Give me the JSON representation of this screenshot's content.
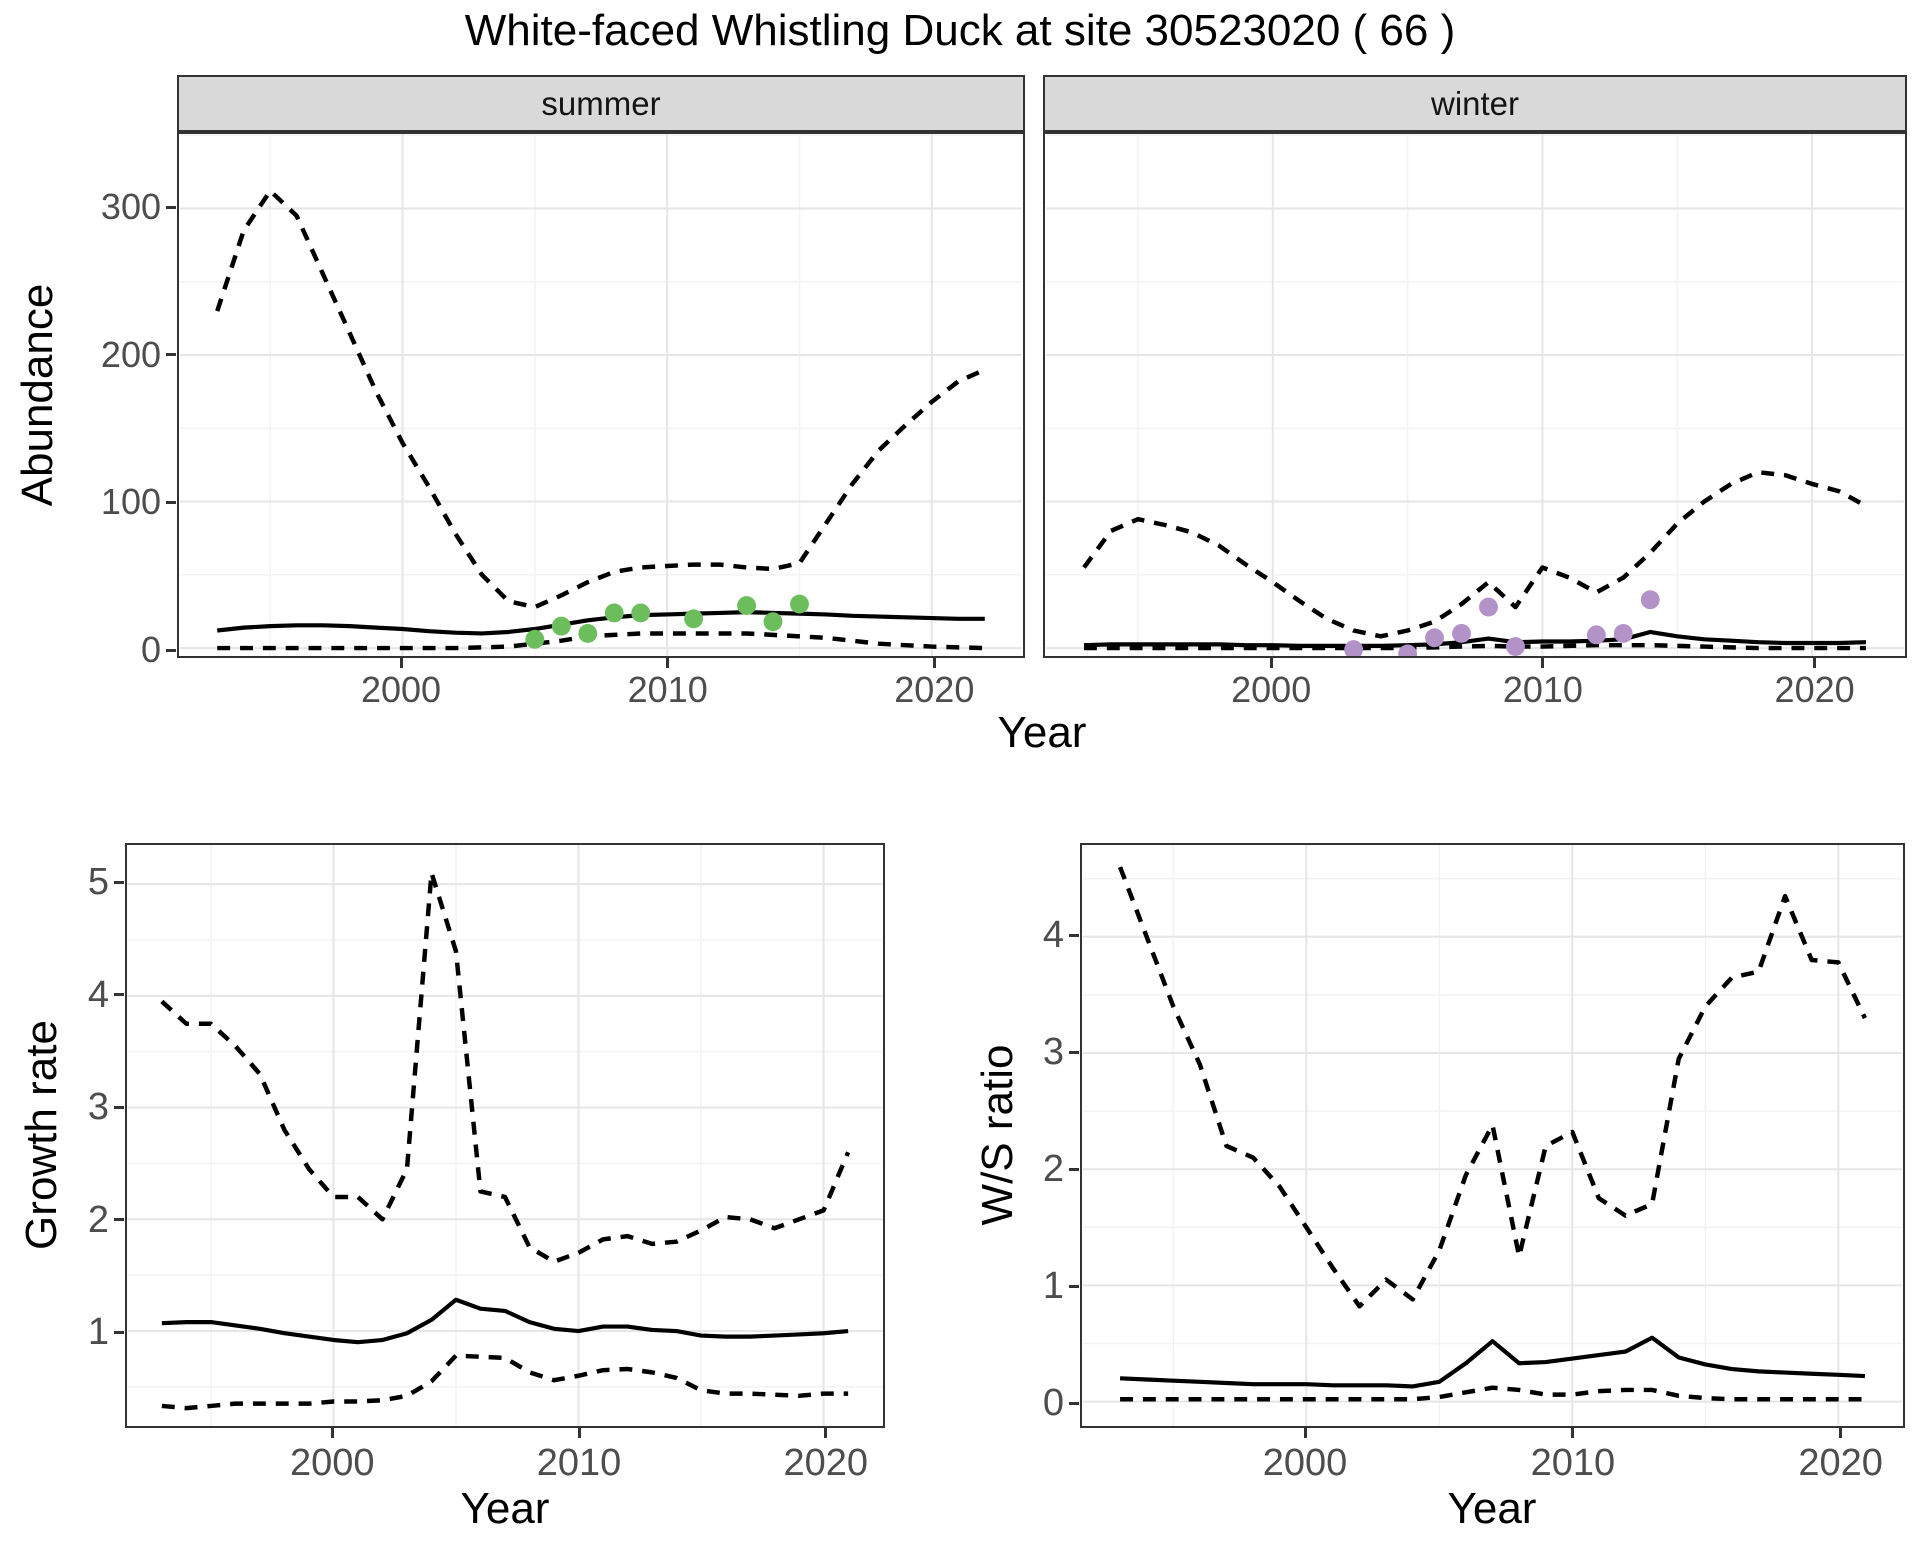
{
  "title": "White-faced Whistling Duck at site 30523020 ( 66 )",
  "colors": {
    "summer_point": "#6BBE5B",
    "winter_point": "#B392C7",
    "line": "#000000",
    "strip_bg": "#D9D9D9",
    "panel_border": "#333333",
    "grid_major": "#E6E6E6",
    "grid_minor": "#F3F3F3",
    "tick_label": "#4D4D4D"
  },
  "chart_data": [
    {
      "id": "abundance-summer",
      "type": "line",
      "facet_label": "summer",
      "xlabel": "Year",
      "ylabel": "Abundance",
      "xlim": [
        1991.6,
        2023.4
      ],
      "ylim": [
        -5.4,
        350.8
      ],
      "x_ticks": [
        2000,
        2010,
        2020
      ],
      "x_minor": [
        1995,
        2005,
        2015
      ],
      "y_ticks": [
        0,
        100,
        200,
        300
      ],
      "y_minor": [
        50,
        150,
        250,
        350
      ],
      "x": [
        1993,
        1994,
        1995,
        1996,
        1997,
        1998,
        1999,
        2000,
        2001,
        2002,
        2003,
        2004,
        2005,
        2006,
        2007,
        2008,
        2009,
        2010,
        2011,
        2012,
        2013,
        2014,
        2015,
        2016,
        2017,
        2018,
        2019,
        2020,
        2021,
        2022
      ],
      "series": [
        {
          "name": "upper-ci",
          "style": "dashed",
          "values": [
            230,
            285,
            312,
            295,
            255,
            215,
            175,
            140,
            110,
            78,
            50,
            32,
            28,
            36,
            45,
            52,
            55,
            56,
            57,
            57,
            55,
            54,
            58,
            85,
            112,
            135,
            152,
            168,
            182,
            190
          ]
        },
        {
          "name": "mean",
          "style": "solid",
          "values": [
            12,
            14,
            15,
            15.5,
            15.5,
            15,
            14,
            13,
            11.5,
            10.5,
            10,
            11,
            13,
            16,
            19,
            21,
            22.5,
            23,
            23.5,
            24,
            24.5,
            24,
            23.5,
            23,
            22,
            21.5,
            21,
            20.5,
            20,
            20
          ]
        },
        {
          "name": "lower-ci",
          "style": "dashed",
          "values": [
            0,
            0,
            0,
            0,
            0,
            0,
            0,
            0,
            0,
            0,
            0.5,
            1,
            3,
            5,
            8,
            9,
            10,
            10,
            10,
            10,
            10,
            9,
            8,
            7,
            5,
            3,
            2,
            1,
            0.5,
            0
          ]
        }
      ],
      "points": {
        "name": "observed-summer",
        "color": "#6BBE5B",
        "years": [
          2005,
          2006,
          2007,
          2008,
          2009,
          2011,
          2013,
          2014,
          2015
        ],
        "values": [
          6,
          15,
          10,
          24,
          24,
          20,
          29,
          18,
          30
        ]
      }
    },
    {
      "id": "abundance-winter",
      "type": "line",
      "facet_label": "winter",
      "xlabel": "Year",
      "ylabel": "Abundance",
      "xlim": [
        1991.6,
        2023.4
      ],
      "ylim": [
        -5.4,
        350.8
      ],
      "x_ticks": [
        2000,
        2010,
        2020
      ],
      "x_minor": [
        1995,
        2005,
        2015
      ],
      "y_ticks": [
        0,
        100,
        200,
        300
      ],
      "y_minor": [
        50,
        150,
        250,
        350
      ],
      "x": [
        1993,
        1994,
        1995,
        1996,
        1997,
        1998,
        1999,
        2000,
        2001,
        2002,
        2003,
        2004,
        2005,
        2006,
        2007,
        2008,
        2009,
        2010,
        2011,
        2012,
        2013,
        2014,
        2015,
        2016,
        2017,
        2018,
        2019,
        2020,
        2021,
        2022
      ],
      "series": [
        {
          "name": "upper-ci",
          "style": "dashed",
          "values": [
            55,
            80,
            88,
            84,
            79,
            70,
            57,
            45,
            32,
            20,
            12,
            8,
            12,
            18,
            30,
            45,
            28,
            55,
            48,
            38,
            48,
            65,
            85,
            100,
            112,
            120,
            118,
            112,
            107,
            97
          ]
        },
        {
          "name": "mean",
          "style": "solid",
          "values": [
            2,
            2.5,
            2.5,
            2.5,
            2.5,
            2.5,
            2,
            2,
            1.5,
            1.5,
            1.5,
            1.5,
            2,
            2.5,
            4,
            6.5,
            4,
            4.5,
            4.5,
            5,
            6,
            11,
            8,
            6,
            5,
            4,
            3.5,
            3.5,
            3.5,
            4
          ]
        },
        {
          "name": "lower-ci",
          "style": "dashed",
          "values": [
            0,
            0,
            0,
            0,
            0,
            0,
            0,
            0,
            0,
            0,
            0,
            0,
            0,
            0.5,
            1,
            1.5,
            1,
            1,
            1.5,
            2,
            2,
            2,
            1.5,
            1,
            0.5,
            0,
            0,
            0,
            0,
            0
          ]
        }
      ],
      "points": {
        "name": "observed-winter",
        "color": "#B392C7",
        "years": [
          2003,
          2005,
          2006,
          2007,
          2008,
          2009,
          2012,
          2013,
          2014
        ],
        "values": [
          -1,
          -4,
          7,
          10,
          28,
          1,
          9,
          10,
          33
        ]
      }
    },
    {
      "id": "growth-rate",
      "type": "line",
      "xlabel": "Year",
      "ylabel": "Growth rate",
      "xlim": [
        1991.6,
        2022.4
      ],
      "ylim": [
        0.15,
        5.35
      ],
      "x_ticks": [
        2000,
        2010,
        2020
      ],
      "x_minor": [
        1995,
        2005,
        2015
      ],
      "y_ticks": [
        1,
        2,
        3,
        4,
        5
      ],
      "y_minor": [
        0.5,
        1.5,
        2.5,
        3.5,
        4.5
      ],
      "x": [
        1993,
        1994,
        1995,
        1996,
        1997,
        1998,
        1999,
        2000,
        2001,
        2002,
        2003,
        2004,
        2005,
        2006,
        2007,
        2008,
        2009,
        2010,
        2011,
        2012,
        2013,
        2014,
        2015,
        2016,
        2017,
        2018,
        2019,
        2020,
        2021
      ],
      "series": [
        {
          "name": "upper-ci",
          "style": "dashed",
          "values": [
            3.95,
            3.75,
            3.75,
            3.55,
            3.3,
            2.8,
            2.45,
            2.2,
            2.2,
            2.0,
            2.45,
            5.1,
            4.4,
            2.25,
            2.2,
            1.75,
            1.62,
            1.7,
            1.82,
            1.85,
            1.78,
            1.8,
            1.9,
            2.02,
            2.0,
            1.92,
            2.0,
            2.08,
            2.6
          ]
        },
        {
          "name": "mean",
          "style": "solid",
          "values": [
            1.07,
            1.08,
            1.08,
            1.05,
            1.02,
            0.98,
            0.95,
            0.92,
            0.9,
            0.92,
            0.98,
            1.1,
            1.28,
            1.2,
            1.18,
            1.08,
            1.02,
            1.0,
            1.04,
            1.04,
            1.01,
            1.0,
            0.96,
            0.95,
            0.95,
            0.96,
            0.97,
            0.98,
            1.0
          ]
        },
        {
          "name": "lower-ci",
          "style": "dashed",
          "values": [
            0.33,
            0.31,
            0.33,
            0.35,
            0.35,
            0.35,
            0.35,
            0.37,
            0.37,
            0.38,
            0.42,
            0.55,
            0.78,
            0.77,
            0.76,
            0.63,
            0.56,
            0.6,
            0.65,
            0.66,
            0.63,
            0.58,
            0.47,
            0.44,
            0.44,
            0.43,
            0.42,
            0.44,
            0.44
          ]
        }
      ]
    },
    {
      "id": "ws-ratio",
      "type": "line",
      "xlabel": "Year",
      "ylabel": "W/S ratio",
      "xlim": [
        1991.6,
        2022.4
      ],
      "ylim": [
        -0.21,
        4.79
      ],
      "x_ticks": [
        2000,
        2010,
        2020
      ],
      "x_minor": [
        1995,
        2005,
        2015
      ],
      "y_ticks": [
        0,
        1,
        2,
        3,
        4
      ],
      "y_minor": [
        0.5,
        1.5,
        2.5,
        3.5,
        4.5
      ],
      "x": [
        1993,
        1994,
        1995,
        1996,
        1997,
        1998,
        1999,
        2000,
        2001,
        2002,
        2003,
        2004,
        2005,
        2006,
        2007,
        2008,
        2009,
        2010,
        2011,
        2012,
        2013,
        2014,
        2015,
        2016,
        2017,
        2018,
        2019,
        2020,
        2021
      ],
      "series": [
        {
          "name": "upper-ci",
          "style": "dashed",
          "values": [
            4.6,
            4.0,
            3.4,
            2.9,
            2.2,
            2.1,
            1.85,
            1.5,
            1.15,
            0.82,
            1.05,
            0.88,
            1.3,
            1.95,
            2.38,
            1.25,
            2.2,
            2.32,
            1.75,
            1.6,
            1.7,
            2.95,
            3.4,
            3.65,
            3.7,
            4.35,
            3.8,
            3.78,
            3.3
          ]
        },
        {
          "name": "mean",
          "style": "solid",
          "values": [
            0.2,
            0.19,
            0.18,
            0.17,
            0.16,
            0.15,
            0.15,
            0.15,
            0.14,
            0.14,
            0.14,
            0.13,
            0.17,
            0.33,
            0.52,
            0.33,
            0.34,
            0.37,
            0.4,
            0.43,
            0.55,
            0.38,
            0.32,
            0.28,
            0.26,
            0.25,
            0.24,
            0.23,
            0.22
          ]
        },
        {
          "name": "lower-ci",
          "style": "dashed",
          "values": [
            0.02,
            0.02,
            0.02,
            0.02,
            0.02,
            0.02,
            0.02,
            0.02,
            0.02,
            0.02,
            0.02,
            0.02,
            0.04,
            0.08,
            0.12,
            0.1,
            0.06,
            0.06,
            0.09,
            0.1,
            0.1,
            0.05,
            0.03,
            0.02,
            0.02,
            0.02,
            0.02,
            0.02,
            0.02
          ]
        }
      ]
    }
  ]
}
